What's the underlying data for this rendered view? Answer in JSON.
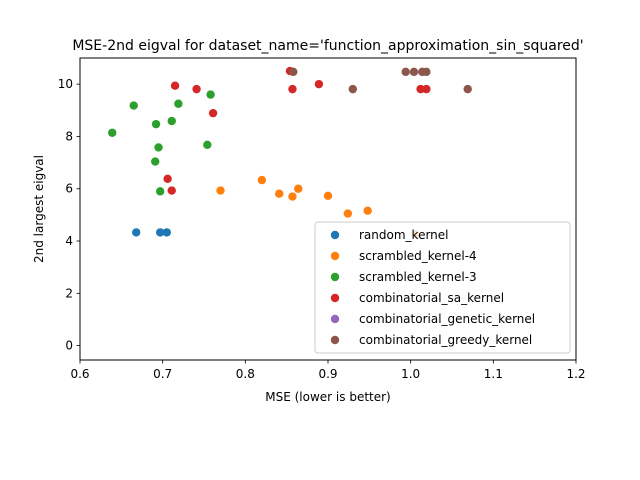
{
  "chart_data": {
    "type": "scatter",
    "title": "MSE-2nd eigval for dataset_name='function_approximation_sin_squared'",
    "xlabel": "MSE (lower is better)",
    "ylabel": "2nd largest eigval",
    "xlim": [
      0.6,
      1.2
    ],
    "ylim": [
      -0.55,
      11.0
    ],
    "xticks": [
      "0.6",
      "0.7",
      "0.8",
      "0.9",
      "1.0",
      "1.1",
      "1.2"
    ],
    "yticks": [
      "0",
      "2",
      "4",
      "6",
      "8",
      "10"
    ],
    "legend_position": "lower-right",
    "series": [
      {
        "name": "random_kernel",
        "color": "#1f77b4",
        "points": [
          [
            0.668,
            4.33
          ],
          [
            0.697,
            4.33
          ],
          [
            0.705,
            4.33
          ]
        ]
      },
      {
        "name": "scrambled_kernel-4",
        "color": "#ff7f0e",
        "points": [
          [
            0.77,
            5.93
          ],
          [
            0.82,
            6.33
          ],
          [
            0.841,
            5.81
          ],
          [
            0.857,
            5.7
          ],
          [
            0.864,
            6.0
          ],
          [
            0.9,
            5.73
          ],
          [
            0.924,
            5.05
          ],
          [
            0.948,
            5.16
          ],
          [
            1.006,
            4.26
          ]
        ]
      },
      {
        "name": "scrambled_kernel-3",
        "color": "#2ca02c",
        "points": [
          [
            0.639,
            8.14
          ],
          [
            0.665,
            9.18
          ],
          [
            0.692,
            8.47
          ],
          [
            0.691,
            7.04
          ],
          [
            0.695,
            7.58
          ],
          [
            0.697,
            5.9
          ],
          [
            0.711,
            8.59
          ],
          [
            0.719,
            9.25
          ],
          [
            0.754,
            7.68
          ],
          [
            0.758,
            9.6
          ]
        ]
      },
      {
        "name": "combinatorial_sa_kernel",
        "color": "#d62728",
        "points": [
          [
            0.706,
            6.38
          ],
          [
            0.711,
            5.93
          ],
          [
            0.715,
            9.94
          ],
          [
            0.741,
            9.81
          ],
          [
            0.761,
            8.89
          ],
          [
            0.854,
            10.5
          ],
          [
            0.857,
            9.81
          ],
          [
            0.889,
            10.0
          ],
          [
            1.012,
            9.81
          ],
          [
            1.019,
            9.81
          ]
        ]
      },
      {
        "name": "combinatorial_genetic_kernel",
        "color": "#9467bd",
        "points": []
      },
      {
        "name": "combinatorial_greedy_kernel",
        "color": "#8c564b",
        "points": [
          [
            0.858,
            10.47
          ],
          [
            0.93,
            9.81
          ],
          [
            0.994,
            10.47
          ],
          [
            1.004,
            10.47
          ],
          [
            1.014,
            10.47
          ],
          [
            1.019,
            10.47
          ],
          [
            1.069,
            9.81
          ]
        ]
      }
    ]
  }
}
